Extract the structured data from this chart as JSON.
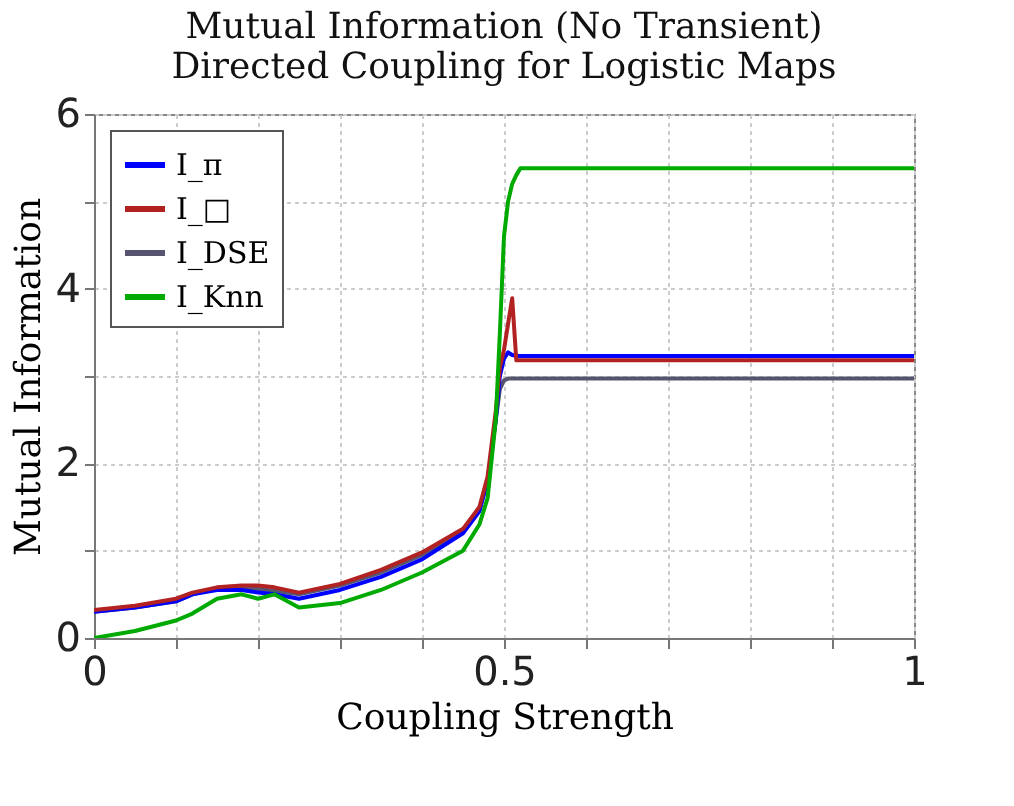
{
  "chart_data": {
    "type": "line",
    "title": [
      "Mutual Information (No Transient)",
      "Directed Coupling for Logistic Maps"
    ],
    "xlabel": "Coupling Strength",
    "ylabel": "Mutual Information",
    "xlim": [
      0,
      1
    ],
    "ylim": [
      0,
      6
    ],
    "xticks": [
      0,
      {
        "value": 0.1,
        "label": null
      },
      {
        "value": 0.2,
        "label": null
      },
      {
        "value": 0.3,
        "label": null
      },
      {
        "value": 0.4,
        "label": null
      },
      0.5,
      {
        "value": 0.6,
        "label": null
      },
      {
        "value": 0.7,
        "label": null
      },
      {
        "value": 0.8,
        "label": null
      },
      {
        "value": 0.9,
        "label": null
      },
      1
    ],
    "yticks": [
      0,
      {
        "value": 1,
        "label": null
      },
      2,
      {
        "value": 3,
        "label": null
      },
      4,
      {
        "value": 5,
        "label": null
      },
      6
    ],
    "grid": true,
    "legend": "top left",
    "line_style": "solid",
    "marker": "none",
    "x": [
      0,
      0.05,
      0.1,
      0.12,
      0.15,
      0.18,
      0.2,
      0.22,
      0.25,
      0.3,
      0.35,
      0.4,
      0.45,
      0.47,
      0.48,
      0.49,
      0.495,
      0.5,
      0.505,
      0.51,
      0.515,
      0.52,
      0.6,
      0.8,
      1
    ],
    "series": [
      {
        "name": "I_π",
        "color": "#0000ff",
        "values": [
          0.3,
          0.35,
          0.42,
          0.5,
          0.55,
          0.55,
          0.52,
          0.5,
          0.45,
          0.55,
          0.7,
          0.9,
          1.2,
          1.45,
          1.8,
          2.5,
          3.0,
          3.2,
          3.27,
          3.24,
          3.23,
          3.23,
          3.23,
          3.23,
          3.23
        ]
      },
      {
        "name": "I_□",
        "color": "#b22222",
        "values": [
          0.32,
          0.37,
          0.45,
          0.52,
          0.58,
          0.6,
          0.6,
          0.58,
          0.52,
          0.62,
          0.78,
          0.98,
          1.25,
          1.5,
          1.85,
          2.6,
          3.1,
          3.3,
          3.6,
          3.89,
          3.18,
          3.18,
          3.18,
          3.18,
          3.18
        ]
      },
      {
        "name": "I_DSE",
        "color": "#555570",
        "values": [
          0.3,
          0.35,
          0.42,
          0.5,
          0.57,
          0.58,
          0.56,
          0.54,
          0.5,
          0.6,
          0.75,
          0.95,
          1.22,
          1.47,
          1.8,
          2.5,
          2.85,
          2.95,
          2.97,
          2.97,
          2.97,
          2.97,
          2.97,
          2.97,
          2.97
        ]
      },
      {
        "name": "I_Knn",
        "color": "#00aa00",
        "values": [
          0,
          0.08,
          0.2,
          0.28,
          0.45,
          0.5,
          0.45,
          0.5,
          0.35,
          0.4,
          0.55,
          0.75,
          1.0,
          1.3,
          1.6,
          2.5,
          3.5,
          4.6,
          5.0,
          5.2,
          5.3,
          5.38,
          5.38,
          5.38,
          5.38
        ]
      }
    ]
  }
}
